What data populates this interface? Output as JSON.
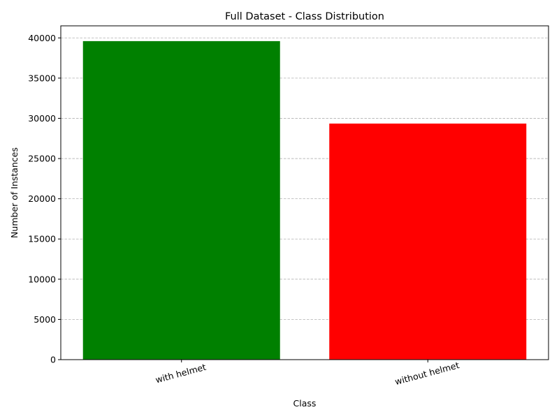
{
  "chart_data": {
    "type": "bar",
    "title": "Full Dataset - Class Distribution",
    "xlabel": "Class",
    "ylabel": "Number of Instances",
    "categories": [
      "with helmet",
      "without helmet"
    ],
    "values": [
      39600,
      29350
    ],
    "colors": [
      "#008000",
      "#ff0000"
    ],
    "ylim": [
      0,
      41500
    ],
    "yticks": [
      0,
      5000,
      10000,
      15000,
      20000,
      25000,
      30000,
      35000,
      40000
    ],
    "ytick_labels": [
      "0",
      "5000",
      "10000",
      "15000",
      "20000",
      "25000",
      "30000",
      "35000",
      "40000"
    ],
    "grid": "horizontal-dashed",
    "legend": "none"
  }
}
